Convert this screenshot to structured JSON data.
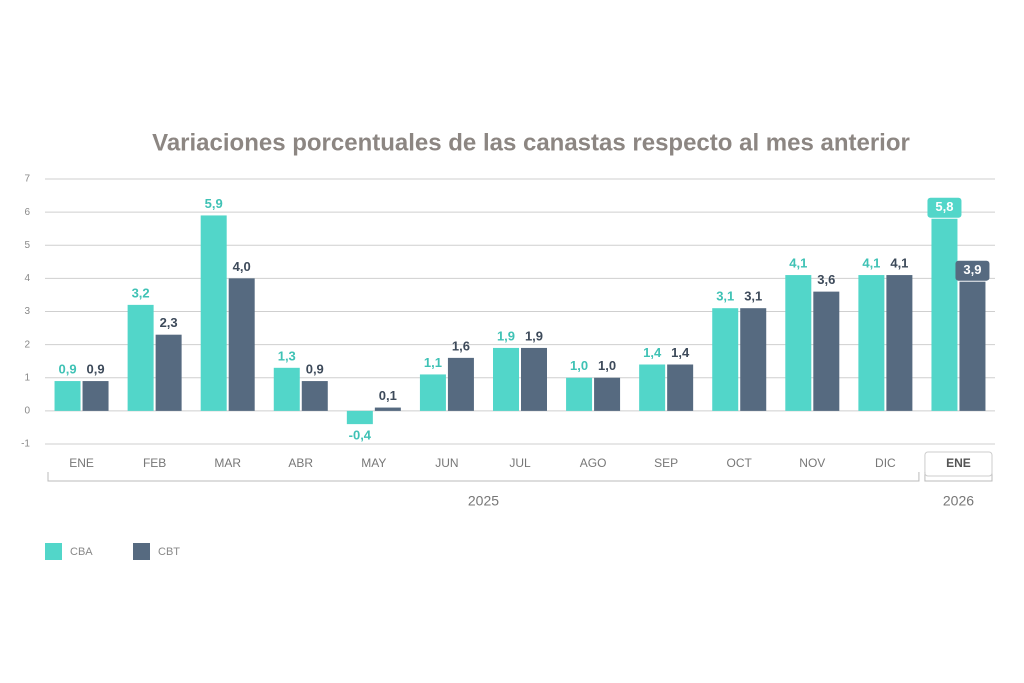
{
  "chart_data": {
    "type": "bar",
    "title": "Variaciones porcentuales de las canastas respecto al mes anterior",
    "category_groups": [
      {
        "label": "2025",
        "categories": [
          "ENE",
          "FEB",
          "MAR",
          "ABR",
          "MAY",
          "JUN",
          "JUL",
          "AGO",
          "SEP",
          "OCT",
          "NOV",
          "DIC"
        ]
      },
      {
        "label": "2026",
        "categories": [
          "ENE"
        ]
      }
    ],
    "series": [
      {
        "name": "CBA",
        "color": "#52d6c9",
        "values": [
          0.9,
          3.2,
          5.9,
          1.3,
          -0.4,
          1.1,
          1.9,
          1.0,
          1.4,
          3.1,
          4.1,
          4.1,
          5.8
        ],
        "value_labels": [
          "0,9",
          "3,2",
          "5,9",
          "1,3",
          "-0,4",
          "1,1",
          "1,9",
          "1,0",
          "1,4",
          "3,1",
          "4,1",
          "4,1",
          "5,8"
        ]
      },
      {
        "name": "CBT",
        "color": "#566a80",
        "values": [
          0.9,
          2.3,
          4.0,
          0.9,
          0.1,
          1.6,
          1.9,
          1.0,
          1.4,
          3.1,
          3.6,
          4.1,
          3.9
        ],
        "value_labels": [
          "0,9",
          "2,3",
          "4,0",
          "0,9",
          "0,1",
          "1,6",
          "1,9",
          "1,0",
          "1,4",
          "3,1",
          "3,6",
          "4,1",
          "3,9"
        ]
      }
    ],
    "ylim": [
      -1,
      7
    ],
    "yticks": [
      -1,
      0,
      1,
      2,
      3,
      4,
      5,
      6,
      7
    ],
    "grid": true
  }
}
